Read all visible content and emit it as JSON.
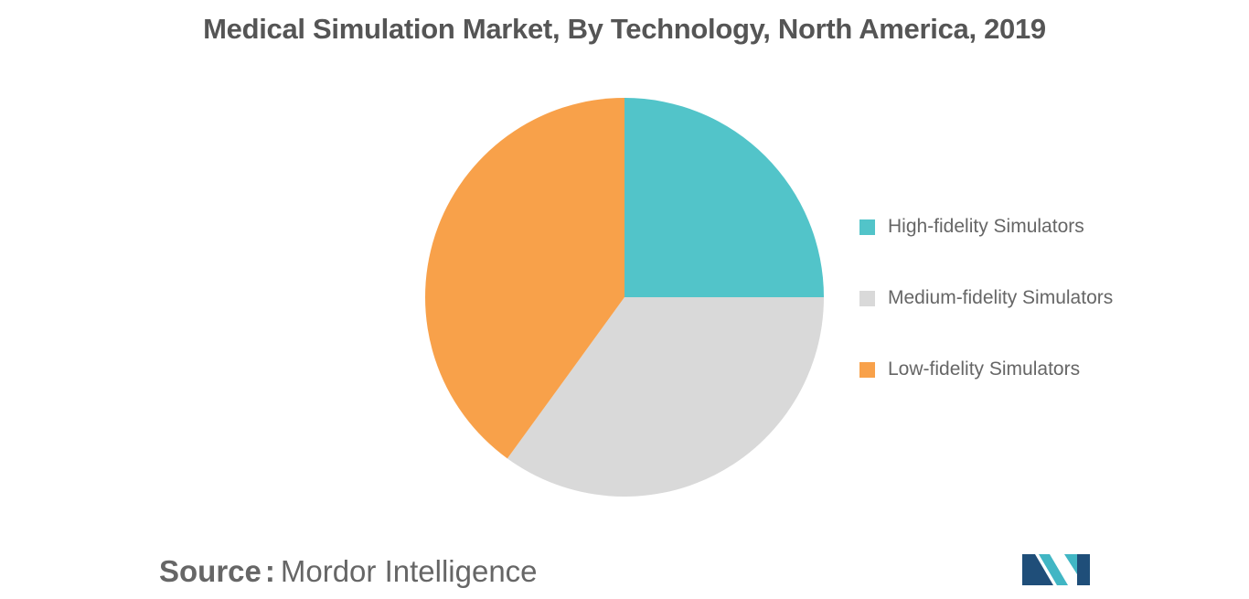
{
  "chart_data": {
    "type": "pie",
    "title": "Medical Simulation Market, By Technology, North America, 2019",
    "slices": [
      {
        "name": "High-fidelity Simulators",
        "value": 25,
        "color": "#52C4C9"
      },
      {
        "name": "Medium-fidelity Simulators",
        "value": 35,
        "color": "#D9D9D9"
      },
      {
        "name": "Low-fidelity Simulators",
        "value": 40,
        "color": "#F8A14A"
      }
    ],
    "legend_position": "right"
  },
  "source": {
    "label": "Source",
    "separator": ":",
    "name": "Mordor Intelligence"
  },
  "logo": {
    "icon": "mordor-intelligence-logo-icon",
    "colors": [
      "#1F4E79",
      "#41B6C4"
    ]
  }
}
